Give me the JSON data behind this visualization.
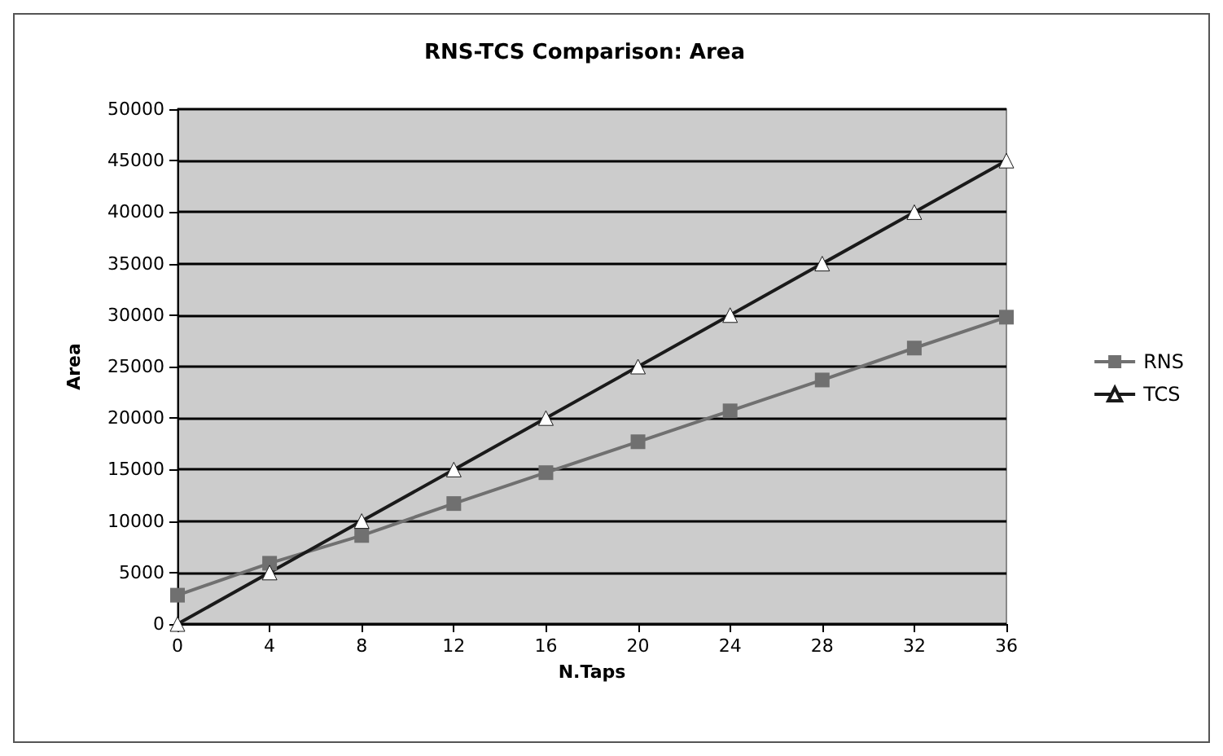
{
  "chart_data": {
    "type": "line",
    "title": "RNS-TCS Comparison: Area",
    "xlabel": "N.Taps",
    "ylabel": "Area",
    "x": [
      0,
      4,
      8,
      12,
      16,
      20,
      24,
      28,
      32,
      36
    ],
    "series": [
      {
        "name": "RNS",
        "color": "#707070",
        "marker": "square",
        "values": [
          2800,
          5900,
          8600,
          11700,
          14700,
          17700,
          20700,
          23700,
          26800,
          29800
        ]
      },
      {
        "name": "TCS",
        "color": "#1a1a1a",
        "marker": "triangle",
        "values": [
          0,
          5000,
          10000,
          15000,
          20000,
          25000,
          30000,
          35000,
          40000,
          45000
        ]
      }
    ],
    "xlim": [
      0,
      36
    ],
    "xticks": [
      0,
      4,
      8,
      12,
      16,
      20,
      24,
      28,
      32,
      36
    ],
    "ylim": [
      0,
      50000
    ],
    "yticks": [
      0,
      5000,
      10000,
      15000,
      20000,
      25000,
      30000,
      35000,
      40000,
      45000,
      50000
    ],
    "grid": "y",
    "legend": "right",
    "line_style": "solid"
  }
}
